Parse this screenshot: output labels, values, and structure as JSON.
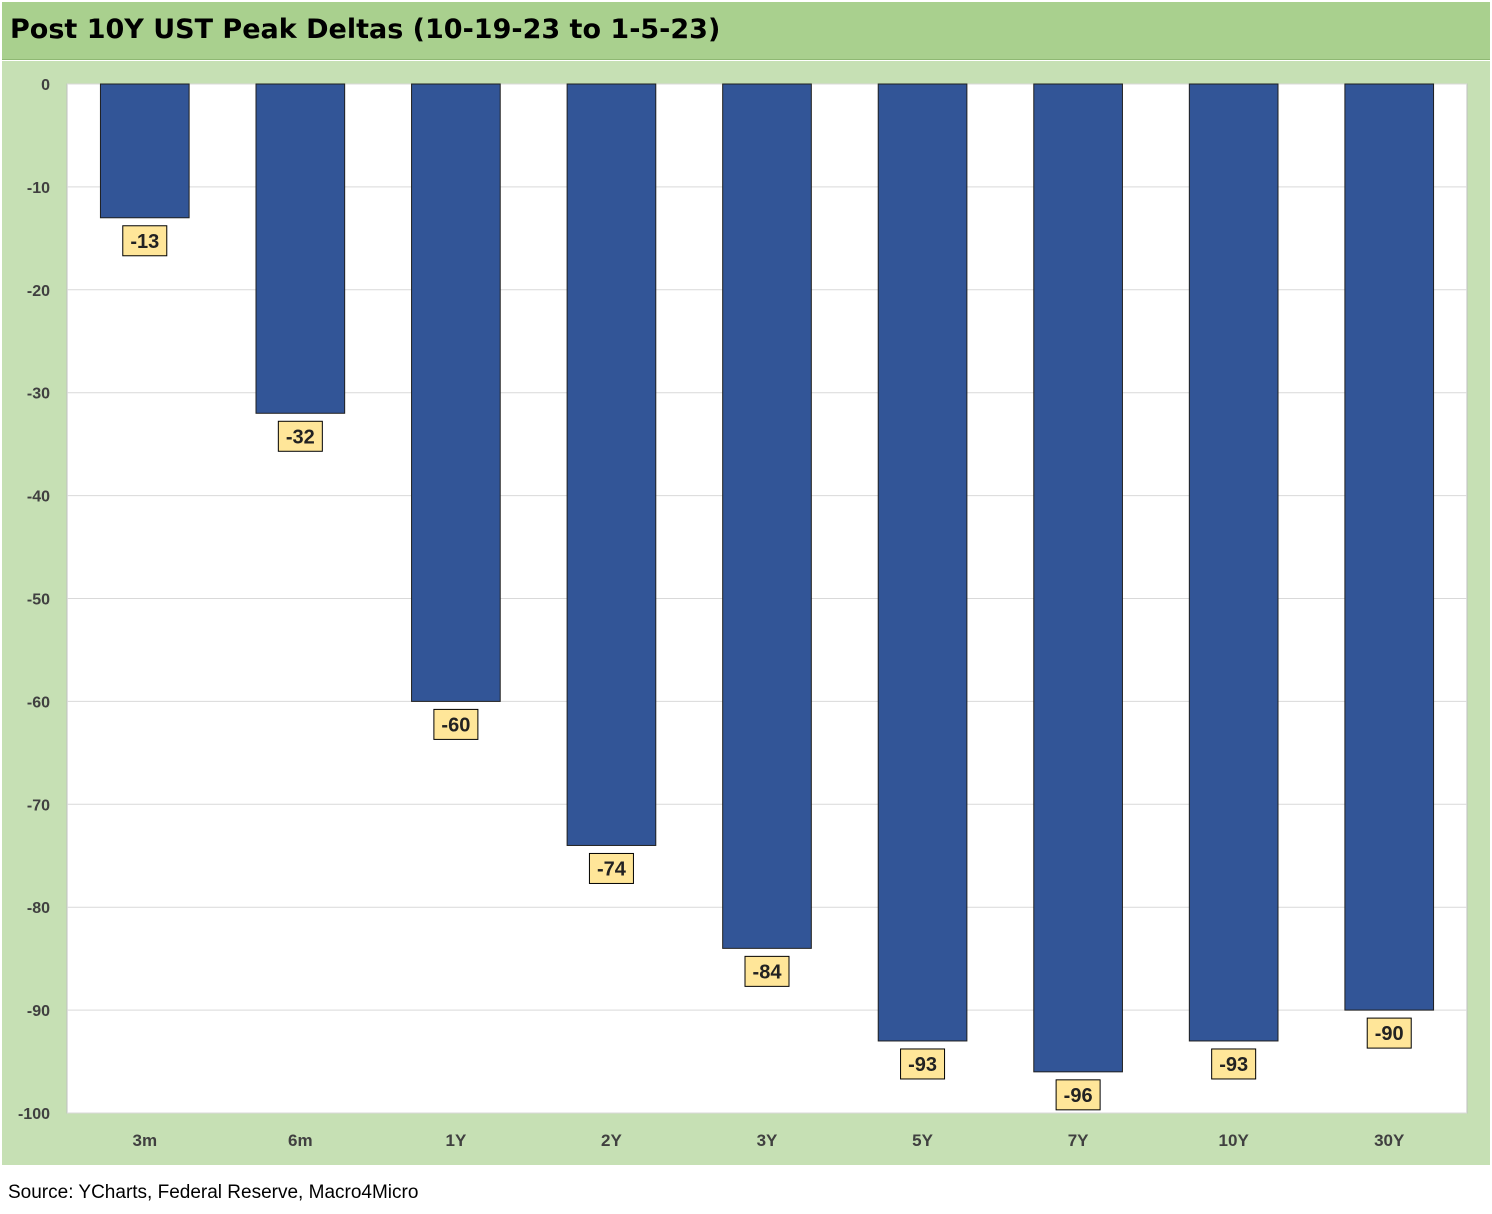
{
  "header": {
    "title": "Post 10Y UST Peak Deltas (10-19-23 to 1-5-23)"
  },
  "footer": {
    "source": "Source: YCharts, Federal Reserve, Macro4Micro"
  },
  "colors": {
    "title_bar": "#a9d08e",
    "chart_background": "#c6e0b4",
    "plot_background": "#ffffff",
    "bar": "#325597",
    "data_label_fill": "#ffe699",
    "gridline": "#d9d9d9"
  },
  "chart_data": {
    "type": "bar",
    "title": "Post 10Y UST Peak Deltas (10-19-23 to 1-5-23)",
    "xlabel": "",
    "ylabel": "",
    "categories": [
      "3m",
      "6m",
      "1Y",
      "2Y",
      "3Y",
      "5Y",
      "7Y",
      "10Y",
      "30Y"
    ],
    "values": [
      -13,
      -32,
      -60,
      -74,
      -84,
      -93,
      -96,
      -93,
      -90
    ],
    "data_labels": [
      "-13",
      "-32",
      "-60",
      "-74",
      "-84",
      "-93",
      "-96",
      "-93",
      "-90"
    ],
    "ylim": [
      -100,
      0
    ],
    "yticks": [
      0,
      -10,
      -20,
      -30,
      -40,
      -50,
      -60,
      -70,
      -80,
      -90,
      -100
    ],
    "grid": true,
    "legend": "none"
  }
}
